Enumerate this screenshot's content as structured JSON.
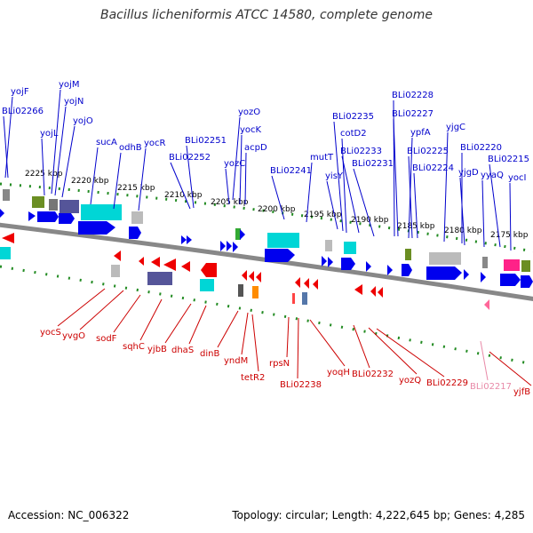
{
  "header": {
    "title": "Bacillus licheniformis ATCC 14580, complete genome"
  },
  "footer": {
    "accession": "Accession: NC_006322",
    "info": "Topology: circular; Length: 4,222,645 bp; Genes: 4,285"
  },
  "colors": {
    "forward_label": "#0000cc",
    "reverse_label": "#cc0000",
    "faded_label": "#e88aa8",
    "backbone": "#888888",
    "tick": "#228b22"
  },
  "scale_labels": [
    "2225 kbp",
    "2220 kbp",
    "2215 kbp",
    "2210 kbp",
    "2205 kbp",
    "2200 kbp",
    "2195 kbp",
    "2190 kbp",
    "2185 kbp",
    "2180 kbp",
    "2175 kbp"
  ],
  "forward_genes": [
    "yojF",
    "BLi02266",
    "yojM",
    "yojN",
    "yojL",
    "yojO",
    "sucA",
    "odhB",
    "yocR",
    "BLi02251",
    "BLi02252",
    "yozO",
    "yocK",
    "acpD",
    "yozC",
    "BLi02241",
    "mutT",
    "BLi02235",
    "cotD2",
    "yisY",
    "BLi02233",
    "BLi02231",
    "BLi02228",
    "BLi02227",
    "ypfA",
    "BLi02225",
    "BLi02224",
    "yjgC",
    "BLi02220",
    "yjgD",
    "yyaQ",
    "BLi02215",
    "yocI"
  ],
  "reverse_genes": [
    "yocS",
    "yvgO",
    "sodF",
    "sqhC",
    "yjbB",
    "dhaS",
    "dinB",
    "yndM",
    "tetR2",
    "rpsN",
    "BLi02238",
    "yoqH",
    "BLi02232",
    "yozQ",
    "BLi02229",
    "BLi02217",
    "yjfB"
  ]
}
